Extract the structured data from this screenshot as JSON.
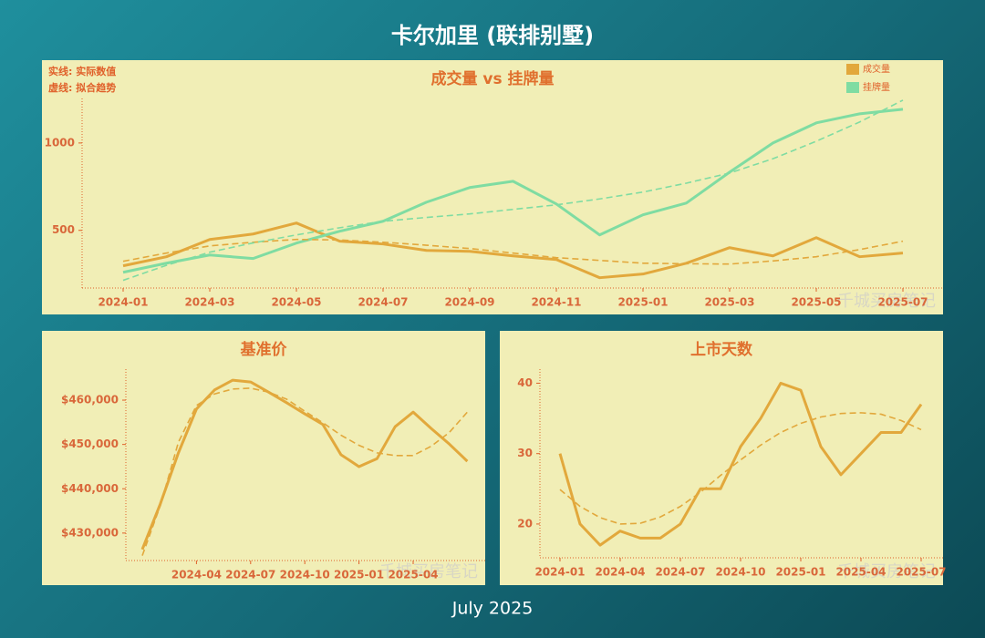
{
  "page_title": "卡尔加里 (联排别墅)",
  "footer": "July 2025",
  "watermark": "千城买房笔记",
  "chart_data": [
    {
      "type": "line",
      "title": "成交量 vs 挂牌量",
      "annotations": [
        "实线: 实际数值",
        "虚线: 拟合趋势"
      ],
      "legend": "upper right",
      "categories": [
        "2024-01",
        null,
        "2024-03",
        null,
        "2024-05",
        null,
        "2024-07",
        null,
        "2024-09",
        null,
        "2024-11",
        null,
        "2025-01",
        null,
        "2025-03",
        null,
        "2025-05",
        null,
        "2025-07"
      ],
      "ylim": [
        170,
        1255
      ],
      "yticks": [
        500,
        1000
      ],
      "series": [
        {
          "name": "成交量",
          "color": "#e2a83c",
          "style": "solid",
          "values": [
            297,
            349,
            448,
            479,
            542,
            438,
            422,
            385,
            380,
            354,
            333,
            229,
            250,
            312,
            401,
            354,
            458,
            349,
            370
          ]
        },
        {
          "name": "挂牌量",
          "color": "#7fdca2",
          "style": "solid",
          "values": [
            260,
            312,
            359,
            339,
            427,
            495,
            552,
            661,
            745,
            781,
            651,
            474,
            589,
            656,
            833,
            1000,
            1115,
            1167,
            1193
          ]
        },
        {
          "color": "#e2a83c",
          "style": "dashed",
          "values": [
            323,
            370,
            411,
            432,
            448,
            445,
            432,
            415,
            396,
            370,
            344,
            328,
            312,
            309,
            307,
            325,
            349,
            390,
            438
          ]
        },
        {
          "color": "#7fdca2",
          "style": "dashed",
          "values": [
            214,
            300,
            375,
            428,
            474,
            515,
            552,
            574,
            594,
            620,
            646,
            680,
            719,
            770,
            828,
            910,
            1010,
            1120,
            1245
          ]
        }
      ]
    },
    {
      "type": "line",
      "title": "基准价",
      "categories": [
        null,
        null,
        null,
        "2024-04",
        null,
        null,
        "2024-07",
        null,
        null,
        "2024-10",
        null,
        null,
        "2025-01",
        null,
        null,
        "2025-04",
        null,
        null,
        null
      ],
      "ylim": [
        423800,
        467000
      ],
      "yticks": [
        {
          "value": 430000,
          "label": "$430,000"
        },
        {
          "value": 440000,
          "label": "$440,000"
        },
        {
          "value": 450000,
          "label": "$450,000"
        },
        {
          "value": 460000,
          "label": "$460,000"
        }
      ],
      "series": [
        {
          "color": "#e2a83c",
          "style": "solid",
          "values": [
            426300,
            436600,
            448100,
            458000,
            462300,
            464500,
            464100,
            461800,
            459400,
            456900,
            454500,
            447700,
            445000,
            446800,
            454000,
            457300,
            453600,
            450100,
            446200
          ]
        },
        {
          "color": "#e2a83c",
          "style": "dashed",
          "values": [
            424900,
            436200,
            450500,
            458800,
            461400,
            462500,
            462700,
            461800,
            460200,
            457500,
            454900,
            452100,
            449800,
            448100,
            447500,
            447500,
            449600,
            452700,
            457300
          ]
        }
      ]
    },
    {
      "type": "line",
      "title": "上市天数",
      "categories": [
        "2024-01",
        null,
        null,
        "2024-04",
        null,
        null,
        "2024-07",
        null,
        null,
        "2024-10",
        null,
        null,
        "2025-01",
        null,
        null,
        "2025-04",
        null,
        null,
        "2025-07"
      ],
      "ylim": [
        15.2,
        42
      ],
      "yticks": [
        20,
        30,
        40
      ],
      "series": [
        {
          "color": "#e2a83c",
          "style": "solid",
          "values": [
            30,
            20,
            17,
            19,
            18,
            18,
            20,
            25,
            25,
            31,
            35,
            40,
            39,
            31,
            27,
            30,
            33,
            33,
            37
          ]
        },
        {
          "color": "#e2a83c",
          "style": "dashed",
          "values": [
            24.9,
            22.5,
            20.9,
            20.0,
            20.1,
            21.0,
            22.5,
            24.5,
            26.9,
            29.1,
            31.2,
            33.0,
            34.3,
            35.2,
            35.7,
            35.8,
            35.6,
            34.7,
            33.4
          ]
        }
      ]
    }
  ]
}
